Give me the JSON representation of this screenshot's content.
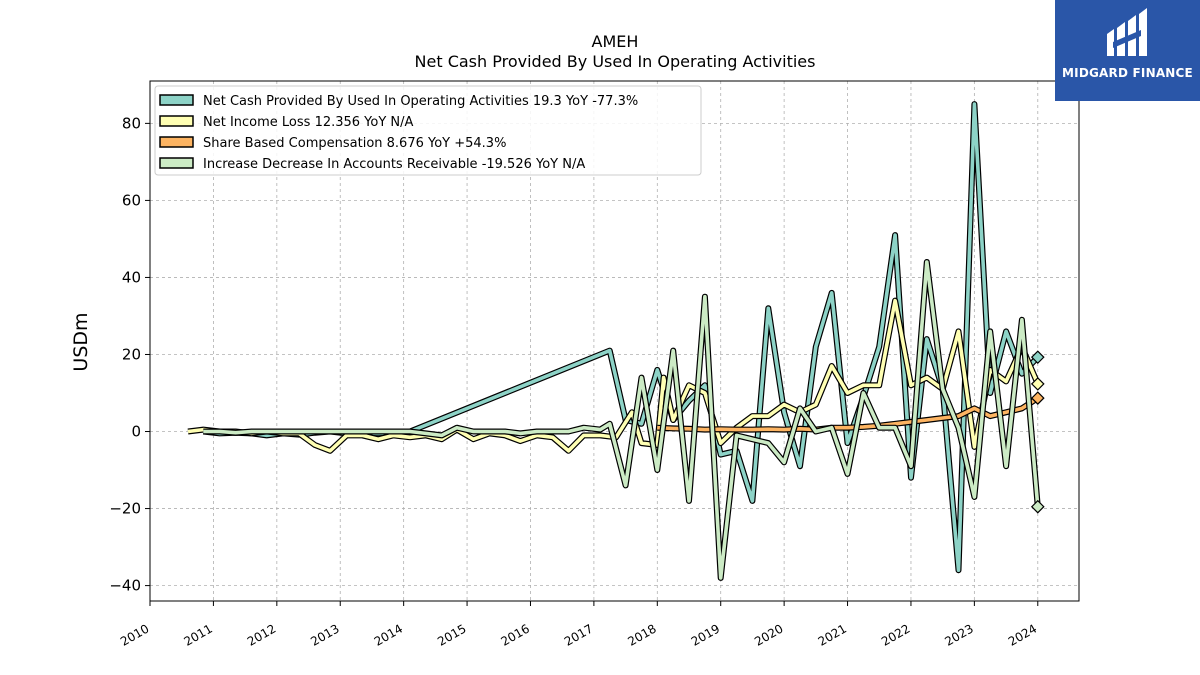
{
  "brand": {
    "name": "MIDGARD FINANCE"
  },
  "chart_data": {
    "type": "line",
    "title": "AMEH",
    "subtitle": "Net Cash Provided By Used In Operating Activities",
    "ylabel": "USDm",
    "xlabel": "",
    "ylim": [
      -44,
      91
    ],
    "xlim": [
      2010.0,
      2024.65
    ],
    "yticks": [
      -40,
      -20,
      0,
      20,
      40,
      60,
      80
    ],
    "yticklabels": [
      "−40",
      "−20",
      "0",
      "20",
      "40",
      "60",
      "80"
    ],
    "xticks": [
      2010,
      2011,
      2012,
      2013,
      2014,
      2015,
      2016,
      2017,
      2018,
      2019,
      2020,
      2021,
      2022,
      2023,
      2024
    ],
    "xticklabels": [
      "2010",
      "2011",
      "2012",
      "2013",
      "2014",
      "2015",
      "2016",
      "2017",
      "2018",
      "2019",
      "2020",
      "2021",
      "2022",
      "2023",
      "2024"
    ],
    "grid": true,
    "legend_position": "top-left",
    "series": [
      {
        "name": "Net Cash Provided By Used In Operating Activities  19.3 YoY -77.3%",
        "color": "#8dd3c7",
        "points": [
          [
            2010.84,
            0
          ],
          [
            2011.1,
            -0.5
          ],
          [
            2011.35,
            -0.3
          ],
          [
            2011.6,
            -0.5
          ],
          [
            2011.84,
            -1
          ],
          [
            2012.1,
            -0.5
          ],
          [
            2012.35,
            -0.8
          ],
          [
            2012.6,
            -0.3
          ],
          [
            2012.84,
            0
          ],
          [
            2013.1,
            -0.5
          ],
          [
            2013.35,
            -0.3
          ],
          [
            2013.6,
            -0.5
          ],
          [
            2013.84,
            -0.3
          ],
          [
            2014.1,
            0
          ],
          [
            2017.25,
            21
          ],
          [
            2017.5,
            3
          ],
          [
            2017.75,
            2
          ],
          [
            2018.0,
            16
          ],
          [
            2018.25,
            3
          ],
          [
            2018.5,
            8
          ],
          [
            2018.75,
            12
          ],
          [
            2019.0,
            -6
          ],
          [
            2019.25,
            -5
          ],
          [
            2019.5,
            -18
          ],
          [
            2019.75,
            32
          ],
          [
            2020.0,
            5
          ],
          [
            2020.25,
            -9
          ],
          [
            2020.5,
            22
          ],
          [
            2020.75,
            36
          ],
          [
            2021.0,
            -3
          ],
          [
            2021.25,
            9
          ],
          [
            2021.5,
            22
          ],
          [
            2021.75,
            51
          ],
          [
            2022.0,
            -12
          ],
          [
            2022.25,
            24
          ],
          [
            2022.5,
            11
          ],
          [
            2022.75,
            -36
          ],
          [
            2023.0,
            85
          ],
          [
            2023.25,
            10
          ],
          [
            2023.5,
            26
          ],
          [
            2023.75,
            15
          ],
          [
            2024.0,
            19.3
          ]
        ]
      },
      {
        "name": "Net Income Loss  12.356 YoY N/A",
        "color": "#ffffb3",
        "points": [
          [
            2010.6,
            0
          ],
          [
            2010.84,
            0.5
          ],
          [
            2011.1,
            0
          ],
          [
            2011.35,
            0
          ],
          [
            2011.6,
            -0.5
          ],
          [
            2011.84,
            0
          ],
          [
            2012.1,
            -0.5
          ],
          [
            2012.35,
            -0.5
          ],
          [
            2012.6,
            -3.5
          ],
          [
            2012.84,
            -5
          ],
          [
            2013.1,
            -1
          ],
          [
            2013.35,
            -1
          ],
          [
            2013.6,
            -2
          ],
          [
            2013.84,
            -1
          ],
          [
            2014.1,
            -1.5
          ],
          [
            2014.35,
            -1
          ],
          [
            2014.6,
            -2
          ],
          [
            2014.84,
            0.5
          ],
          [
            2015.1,
            -2
          ],
          [
            2015.35,
            -0.5
          ],
          [
            2015.6,
            -1
          ],
          [
            2015.84,
            -2.5
          ],
          [
            2016.1,
            -1
          ],
          [
            2016.35,
            -1.5
          ],
          [
            2016.6,
            -5
          ],
          [
            2016.84,
            -1
          ],
          [
            2017.1,
            -1
          ],
          [
            2017.35,
            -1.5
          ],
          [
            2017.6,
            5
          ],
          [
            2017.75,
            -3
          ],
          [
            2018.0,
            -3.5
          ],
          [
            2018.1,
            14
          ],
          [
            2018.25,
            3
          ],
          [
            2018.5,
            12
          ],
          [
            2018.75,
            10
          ],
          [
            2019.0,
            -3
          ],
          [
            2019.25,
            1
          ],
          [
            2019.5,
            4
          ],
          [
            2019.75,
            4
          ],
          [
            2020.0,
            7
          ],
          [
            2020.25,
            5
          ],
          [
            2020.5,
            7
          ],
          [
            2020.75,
            17
          ],
          [
            2021.0,
            10
          ],
          [
            2021.25,
            12
          ],
          [
            2021.5,
            12
          ],
          [
            2021.75,
            34
          ],
          [
            2022.0,
            12
          ],
          [
            2022.25,
            14
          ],
          [
            2022.5,
            11
          ],
          [
            2022.75,
            26
          ],
          [
            2023.0,
            -4
          ],
          [
            2023.25,
            16
          ],
          [
            2023.5,
            13
          ],
          [
            2023.75,
            22
          ],
          [
            2024.0,
            12.356
          ]
        ]
      },
      {
        "name": "Share Based Compensation  8.676 YoY +54.3%",
        "color": "#fdb462",
        "points": [
          [
            2018.0,
            1
          ],
          [
            2018.25,
            0.8
          ],
          [
            2018.5,
            0.7
          ],
          [
            2018.75,
            0.5
          ],
          [
            2019.0,
            0.6
          ],
          [
            2019.25,
            0.5
          ],
          [
            2019.5,
            0.5
          ],
          [
            2019.75,
            0.6
          ],
          [
            2020.0,
            0.5
          ],
          [
            2020.25,
            0.7
          ],
          [
            2020.5,
            0.5
          ],
          [
            2020.75,
            1
          ],
          [
            2021.0,
            1
          ],
          [
            2021.25,
            1.2
          ],
          [
            2021.5,
            1.5
          ],
          [
            2021.75,
            2
          ],
          [
            2022.0,
            2.5
          ],
          [
            2022.25,
            3
          ],
          [
            2022.5,
            3.5
          ],
          [
            2022.75,
            4
          ],
          [
            2023.0,
            6
          ],
          [
            2023.25,
            4
          ],
          [
            2023.5,
            5
          ],
          [
            2023.75,
            6
          ],
          [
            2024.0,
            8.676
          ]
        ]
      },
      {
        "name": "Increase Decrease In Accounts Receivable  -19.526 YoY N/A",
        "color": "#ccebc5",
        "points": [
          [
            2010.84,
            0
          ],
          [
            2011.1,
            0
          ],
          [
            2011.35,
            -0.3
          ],
          [
            2011.6,
            0
          ],
          [
            2011.84,
            0
          ],
          [
            2012.1,
            0
          ],
          [
            2012.35,
            0
          ],
          [
            2012.6,
            0
          ],
          [
            2012.84,
            0
          ],
          [
            2013.1,
            0
          ],
          [
            2013.35,
            0
          ],
          [
            2013.6,
            0
          ],
          [
            2013.84,
            0
          ],
          [
            2014.1,
            0
          ],
          [
            2014.35,
            -0.5
          ],
          [
            2014.6,
            -1
          ],
          [
            2014.84,
            1
          ],
          [
            2015.1,
            0
          ],
          [
            2015.35,
            0
          ],
          [
            2015.6,
            0
          ],
          [
            2015.84,
            -0.5
          ],
          [
            2016.1,
            0
          ],
          [
            2016.35,
            0
          ],
          [
            2016.6,
            0
          ],
          [
            2016.84,
            1
          ],
          [
            2017.1,
            0.5
          ],
          [
            2017.25,
            2
          ],
          [
            2017.5,
            -14
          ],
          [
            2017.75,
            14
          ],
          [
            2018.0,
            -10
          ],
          [
            2018.25,
            21
          ],
          [
            2018.5,
            -18
          ],
          [
            2018.75,
            35
          ],
          [
            2019.0,
            -38
          ],
          [
            2019.25,
            -1
          ],
          [
            2019.5,
            -2
          ],
          [
            2019.75,
            -3
          ],
          [
            2020.0,
            -8
          ],
          [
            2020.25,
            6
          ],
          [
            2020.5,
            0
          ],
          [
            2020.75,
            1
          ],
          [
            2021.0,
            -11
          ],
          [
            2021.25,
            10
          ],
          [
            2021.5,
            1
          ],
          [
            2021.75,
            1
          ],
          [
            2022.0,
            -9
          ],
          [
            2022.25,
            44
          ],
          [
            2022.5,
            11
          ],
          [
            2022.75,
            1
          ],
          [
            2023.0,
            -17
          ],
          [
            2023.25,
            26
          ],
          [
            2023.5,
            -9
          ],
          [
            2023.75,
            29
          ],
          [
            2024.0,
            -19.526
          ]
        ]
      }
    ]
  }
}
